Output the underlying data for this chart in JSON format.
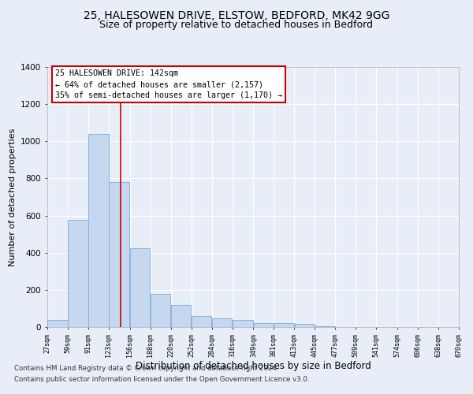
{
  "title1": "25, HALESOWEN DRIVE, ELSTOW, BEDFORD, MK42 9GG",
  "title2": "Size of property relative to detached houses in Bedford",
  "xlabel": "Distribution of detached houses by size in Bedford",
  "ylabel": "Number of detached properties",
  "footnote1": "Contains HM Land Registry data © Crown copyright and database right 2024.",
  "footnote2": "Contains public sector information licensed under the Open Government Licence v3.0.",
  "annotation_line1": "25 HALESOWEN DRIVE: 142sqm",
  "annotation_line2": "← 64% of detached houses are smaller (2,157)",
  "annotation_line3": "35% of semi-detached houses are larger (1,170) →",
  "bar_left_edges": [
    27,
    59,
    91,
    123,
    156,
    188,
    220,
    252,
    284,
    316,
    349,
    381,
    413,
    445,
    477,
    509,
    541,
    574,
    606,
    638
  ],
  "bar_widths": [
    32,
    32,
    32,
    33,
    32,
    32,
    32,
    32,
    32,
    33,
    32,
    32,
    32,
    32,
    32,
    32,
    33,
    32,
    32,
    32
  ],
  "bar_heights": [
    40,
    575,
    1040,
    780,
    425,
    180,
    120,
    58,
    45,
    38,
    22,
    20,
    15,
    5,
    0,
    0,
    0,
    0,
    0,
    0
  ],
  "bar_color": "#c5d8ef",
  "bar_edge_color": "#7aadd4",
  "property_line_x": 142,
  "property_line_color": "#cc0000",
  "ylim": [
    0,
    1400
  ],
  "xlim": [
    27,
    670
  ],
  "tick_labels": [
    "27sqm",
    "59sqm",
    "91sqm",
    "123sqm",
    "156sqm",
    "188sqm",
    "220sqm",
    "252sqm",
    "284sqm",
    "316sqm",
    "349sqm",
    "381sqm",
    "413sqm",
    "445sqm",
    "477sqm",
    "509sqm",
    "541sqm",
    "574sqm",
    "606sqm",
    "638sqm",
    "670sqm"
  ],
  "tick_positions": [
    27,
    59,
    91,
    123,
    156,
    188,
    220,
    252,
    284,
    316,
    349,
    381,
    413,
    445,
    477,
    509,
    541,
    574,
    606,
    638,
    670
  ],
  "yticks": [
    0,
    200,
    400,
    600,
    800,
    1000,
    1200,
    1400
  ],
  "bg_color": "#e8eef8",
  "plot_bg_color": "#e8eef8",
  "grid_color": "#ffffff",
  "title_fontsize": 10,
  "subtitle_fontsize": 9
}
